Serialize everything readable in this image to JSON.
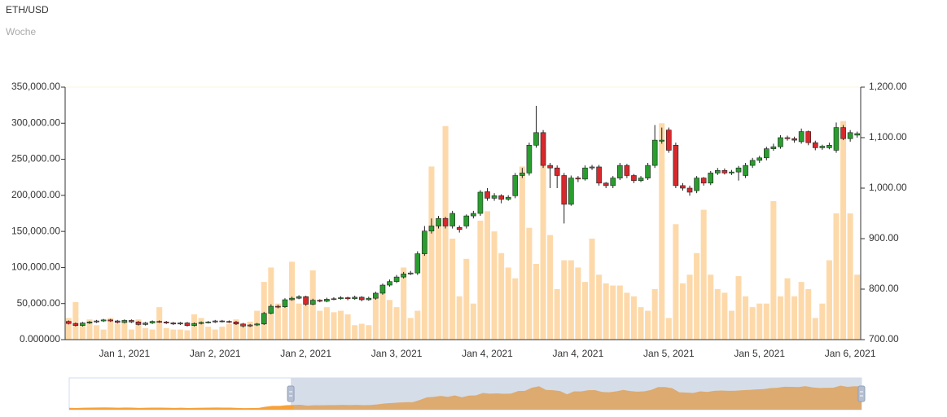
{
  "chart_data": {
    "type": "candlestick",
    "title": "ETH/USD",
    "subtitle": "Woche",
    "categories": [
      null,
      null,
      null,
      null,
      null,
      null,
      null,
      null,
      "Jan 1, 2021",
      null,
      null,
      null,
      null,
      null,
      null,
      null,
      null,
      null,
      null,
      null,
      null,
      "Jan 2, 2021",
      null,
      null,
      null,
      null,
      null,
      null,
      null,
      null,
      null,
      null,
      null,
      null,
      "Jan 2, 2021",
      null,
      null,
      null,
      null,
      null,
      null,
      null,
      null,
      null,
      null,
      null,
      null,
      "Jan 3, 2021",
      null,
      null,
      null,
      null,
      null,
      null,
      null,
      null,
      null,
      null,
      null,
      null,
      "Jan 4, 2021",
      null,
      null,
      null,
      null,
      null,
      null,
      null,
      null,
      null,
      null,
      null,
      null,
      "Jan 4, 2021",
      null,
      null,
      null,
      null,
      null,
      null,
      null,
      null,
      null,
      null,
      null,
      null,
      "Jan 5, 2021",
      null,
      null,
      null,
      null,
      null,
      null,
      null,
      null,
      null,
      null,
      null,
      null,
      "Jan 5, 2021",
      null,
      null,
      null,
      null,
      null,
      null,
      null,
      null,
      null,
      null,
      null,
      null,
      "Jan 6, 2021",
      null
    ],
    "open": [
      736,
      732,
      728,
      733,
      735,
      737,
      739,
      737,
      734,
      738,
      735,
      730,
      733,
      736,
      735,
      733,
      731,
      733,
      728,
      732,
      734,
      735,
      737,
      736,
      735,
      731,
      727,
      729,
      731,
      752,
      766,
      765,
      779,
      782,
      785,
      770,
      778,
      776,
      780,
      781,
      783,
      781,
      784,
      779,
      782,
      792,
      808,
      815,
      824,
      830,
      832,
      870,
      915,
      925,
      940,
      925,
      922,
      925,
      945,
      950,
      993,
      980,
      985,
      978,
      985,
      1025,
      1030,
      1085,
      1110,
      1045,
      1040,
      1025,
      968,
      1020,
      1018,
      1040,
      1042,
      1010,
      1005,
      1020,
      1045,
      1025,
      1015,
      1020,
      1045,
      1093,
      1115,
      1085,
      1005,
      1000,
      995,
      1020,
      1010,
      1030,
      1035,
      1030,
      1032,
      1025,
      1045,
      1055,
      1060,
      1078,
      1082,
      1100,
      1098,
      1092,
      1112,
      1090,
      1080,
      1080,
      1075,
      1120,
      1098,
      1105
    ],
    "close": [
      732,
      728,
      733,
      735,
      737,
      739,
      737,
      734,
      738,
      735,
      730,
      733,
      736,
      735,
      733,
      731,
      733,
      728,
      732,
      734,
      735,
      737,
      736,
      735,
      731,
      727,
      729,
      731,
      752,
      766,
      765,
      779,
      782,
      785,
      770,
      778,
      776,
      780,
      781,
      783,
      781,
      784,
      779,
      782,
      792,
      808,
      815,
      824,
      830,
      832,
      870,
      915,
      925,
      940,
      925,
      950,
      918,
      945,
      950,
      992,
      980,
      985,
      978,
      982,
      1025,
      1030,
      1085,
      1110,
      1045,
      1040,
      1025,
      968,
      1020,
      1018,
      1040,
      1042,
      1010,
      1005,
      1020,
      1045,
      1025,
      1015,
      1020,
      1045,
      1095,
      1095,
      1075,
      1005,
      1000,
      992,
      1020,
      1010,
      1030,
      1035,
      1030,
      1032,
      1040,
      1045,
      1055,
      1060,
      1078,
      1082,
      1100,
      1098,
      1095,
      1112,
      1090,
      1080,
      1083,
      1085,
      1120,
      1098,
      1110,
      1108
    ],
    "high": [
      738,
      734,
      735,
      737,
      739,
      741,
      741,
      739,
      740,
      740,
      737,
      735,
      738,
      738,
      737,
      735,
      735,
      735,
      734,
      736,
      737,
      739,
      739,
      738,
      737,
      733,
      731,
      733,
      755,
      770,
      769,
      782,
      785,
      788,
      787,
      781,
      780,
      783,
      784,
      786,
      785,
      787,
      786,
      785,
      795,
      811,
      819,
      828,
      834,
      836,
      875,
      925,
      940,
      945,
      943,
      955,
      926,
      948,
      955,
      996,
      1000,
      990,
      988,
      986,
      1030,
      1040,
      1090,
      1163,
      1115,
      1050,
      1045,
      1030,
      1025,
      1024,
      1045,
      1046,
      1046,
      1012,
      1024,
      1050,
      1048,
      1028,
      1024,
      1050,
      1125,
      1120,
      1120,
      1090,
      1010,
      1005,
      1024,
      1022,
      1034,
      1040,
      1039,
      1036,
      1044,
      1050,
      1060,
      1064,
      1082,
      1088,
      1105,
      1104,
      1102,
      1118,
      1114,
      1094,
      1086,
      1090,
      1130,
      1125,
      1115,
      1112
    ],
    "low": [
      730,
      726,
      726,
      731,
      733,
      735,
      735,
      732,
      732,
      733,
      728,
      728,
      731,
      733,
      731,
      729,
      729,
      726,
      726,
      730,
      732,
      733,
      734,
      733,
      729,
      724,
      725,
      727,
      729,
      750,
      762,
      763,
      777,
      780,
      767,
      768,
      774,
      774,
      778,
      779,
      778,
      779,
      776,
      777,
      779,
      789,
      805,
      812,
      821,
      828,
      828,
      866,
      910,
      920,
      920,
      920,
      912,
      920,
      940,
      945,
      975,
      975,
      970,
      975,
      980,
      1020,
      1025,
      1080,
      1040,
      1000,
      1000,
      930,
      965,
      1012,
      1015,
      1036,
      1005,
      1000,
      1000,
      1016,
      1020,
      1010,
      1012,
      1016,
      1040,
      1088,
      1070,
      1000,
      995,
      985,
      990,
      1005,
      1006,
      1026,
      1027,
      1026,
      1015,
      1020,
      1040,
      1050,
      1055,
      1074,
      1078,
      1094,
      1090,
      1088,
      1085,
      1075,
      1076,
      1077,
      1070,
      1095,
      1092,
      1100
    ],
    "volume": [
      30000,
      52000,
      22000,
      28000,
      20000,
      14000,
      30000,
      22000,
      25000,
      14000,
      28000,
      16000,
      14000,
      45000,
      16000,
      14000,
      14000,
      13000,
      35000,
      30000,
      18000,
      14000,
      18000,
      22000,
      28000,
      22000,
      25000,
      40000,
      80000,
      100000,
      50000,
      45000,
      108000,
      50000,
      60000,
      96000,
      40000,
      45000,
      38000,
      40000,
      35000,
      20000,
      22000,
      20000,
      60000,
      70000,
      55000,
      45000,
      100000,
      30000,
      40000,
      150000,
      240000,
      160000,
      296000,
      140000,
      60000,
      112000,
      50000,
      165000,
      178000,
      150000,
      120000,
      100000,
      85000,
      240000,
      155000,
      105000,
      265000,
      145000,
      70000,
      110000,
      110000,
      100000,
      80000,
      140000,
      90000,
      78000,
      75000,
      75000,
      65000,
      60000,
      45000,
      40000,
      70000,
      300000,
      30000,
      160000,
      78000,
      90000,
      120000,
      180000,
      90000,
      70000,
      65000,
      40000,
      88000,
      60000,
      45000,
      50000,
      50000,
      192000,
      60000,
      85000,
      60000,
      80000,
      70000,
      30000,
      50000,
      110000,
      175000,
      303000,
      175000,
      90000
    ],
    "up_color": "#2a9d2f",
    "down_color": "#d7292d",
    "volume_color": "#fdd9aa",
    "ylim": [
      0,
      350000
    ],
    "yticks": [
      {
        "value": 0,
        "label": "0.000000"
      },
      {
        "value": 50000,
        "label": "50,000.00"
      },
      {
        "value": 100000,
        "label": "100,000.00"
      },
      {
        "value": 150000,
        "label": "150,000.00"
      },
      {
        "value": 200000,
        "label": "200,000.00"
      },
      {
        "value": 250000,
        "label": "250,000.00"
      },
      {
        "value": 300000,
        "label": "300,000.00"
      },
      {
        "value": 350000,
        "label": "350,000.00"
      }
    ],
    "y2lim": [
      700,
      1200
    ],
    "y2ticks": [
      {
        "value": 700,
        "label": "700.00"
      },
      {
        "value": 800,
        "label": "800.00"
      },
      {
        "value": 900,
        "label": "900.00"
      },
      {
        "value": 1000,
        "label": "1,000.00"
      },
      {
        "value": 1100,
        "label": "1,100.00"
      },
      {
        "value": 1200,
        "label": "1,200.00"
      }
    ]
  }
}
